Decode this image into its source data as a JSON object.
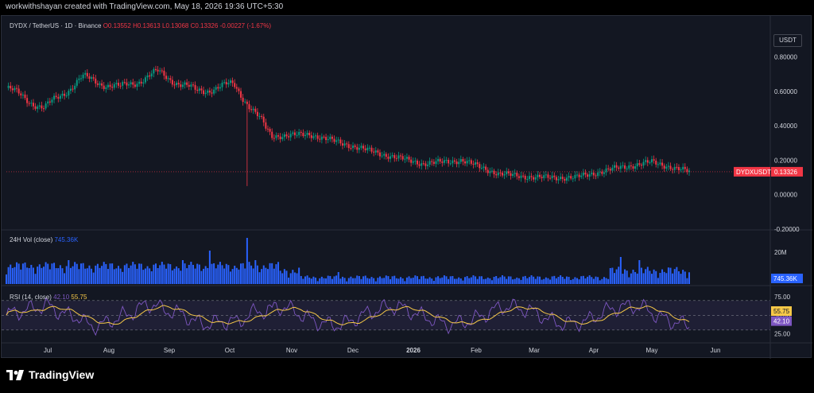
{
  "header": {
    "caption": "workwithshayan created with TradingView.com, May 18, 2026 19:36 UTC+5:30"
  },
  "symbol": {
    "title": "DYDX / TetherUS · 1D · Binance",
    "open": "O0.13552",
    "high": "H0.13613",
    "low": "L0.13068",
    "close": "C0.13326",
    "change": "-0.00227 (-1.67%)",
    "currency": "USDT",
    "price_label": "DYDXUSDT",
    "last_price": "0.13326"
  },
  "volume": {
    "title": "24H Vol (close)",
    "value": "745.36K",
    "axis_label": "20M"
  },
  "rsi": {
    "title": "RSI (14, close)",
    "value": "42.10",
    "ma_value": "55.75",
    "ticks": [
      "75.00",
      "50.00",
      "25.00"
    ]
  },
  "colors": {
    "up": "#089981",
    "down": "#f23645",
    "volume": "#2962ff",
    "rsi": "#7e57c2",
    "rsi_ma": "#f7c948"
  },
  "footer": {
    "brand": "TradingView"
  },
  "chart_data": {
    "type": "line",
    "title": "DYDX / TetherUS · 1D · Binance",
    "x_tick_labels": [
      "Jul",
      "Aug",
      "Sep",
      "Oct",
      "Nov",
      "Dec",
      "2026",
      "Feb",
      "Mar",
      "Apr",
      "May",
      "Jun"
    ],
    "price_axis": {
      "ylim": [
        -0.2,
        0.9
      ],
      "ticks": [
        "0.80000",
        "0.60000",
        "0.40000",
        "0.20000",
        "0.00000",
        "-0.20000"
      ]
    },
    "series": [
      {
        "name": "DYDXUSDT",
        "x": [
          "Jun",
          "Jul",
          "Aug",
          "Aug",
          "Sep",
          "Sep",
          "Oct",
          "Oct",
          "Nov",
          "Nov",
          "Dec",
          "Dec",
          "2026",
          "Feb",
          "Mar",
          "Apr",
          "Apr",
          "May",
          "May"
        ],
        "values": [
          0.62,
          0.5,
          0.68,
          0.62,
          0.71,
          0.6,
          0.64,
          0.34,
          0.35,
          0.29,
          0.23,
          0.18,
          0.2,
          0.12,
          0.1,
          0.1,
          0.15,
          0.19,
          0.133
        ]
      }
    ]
  }
}
